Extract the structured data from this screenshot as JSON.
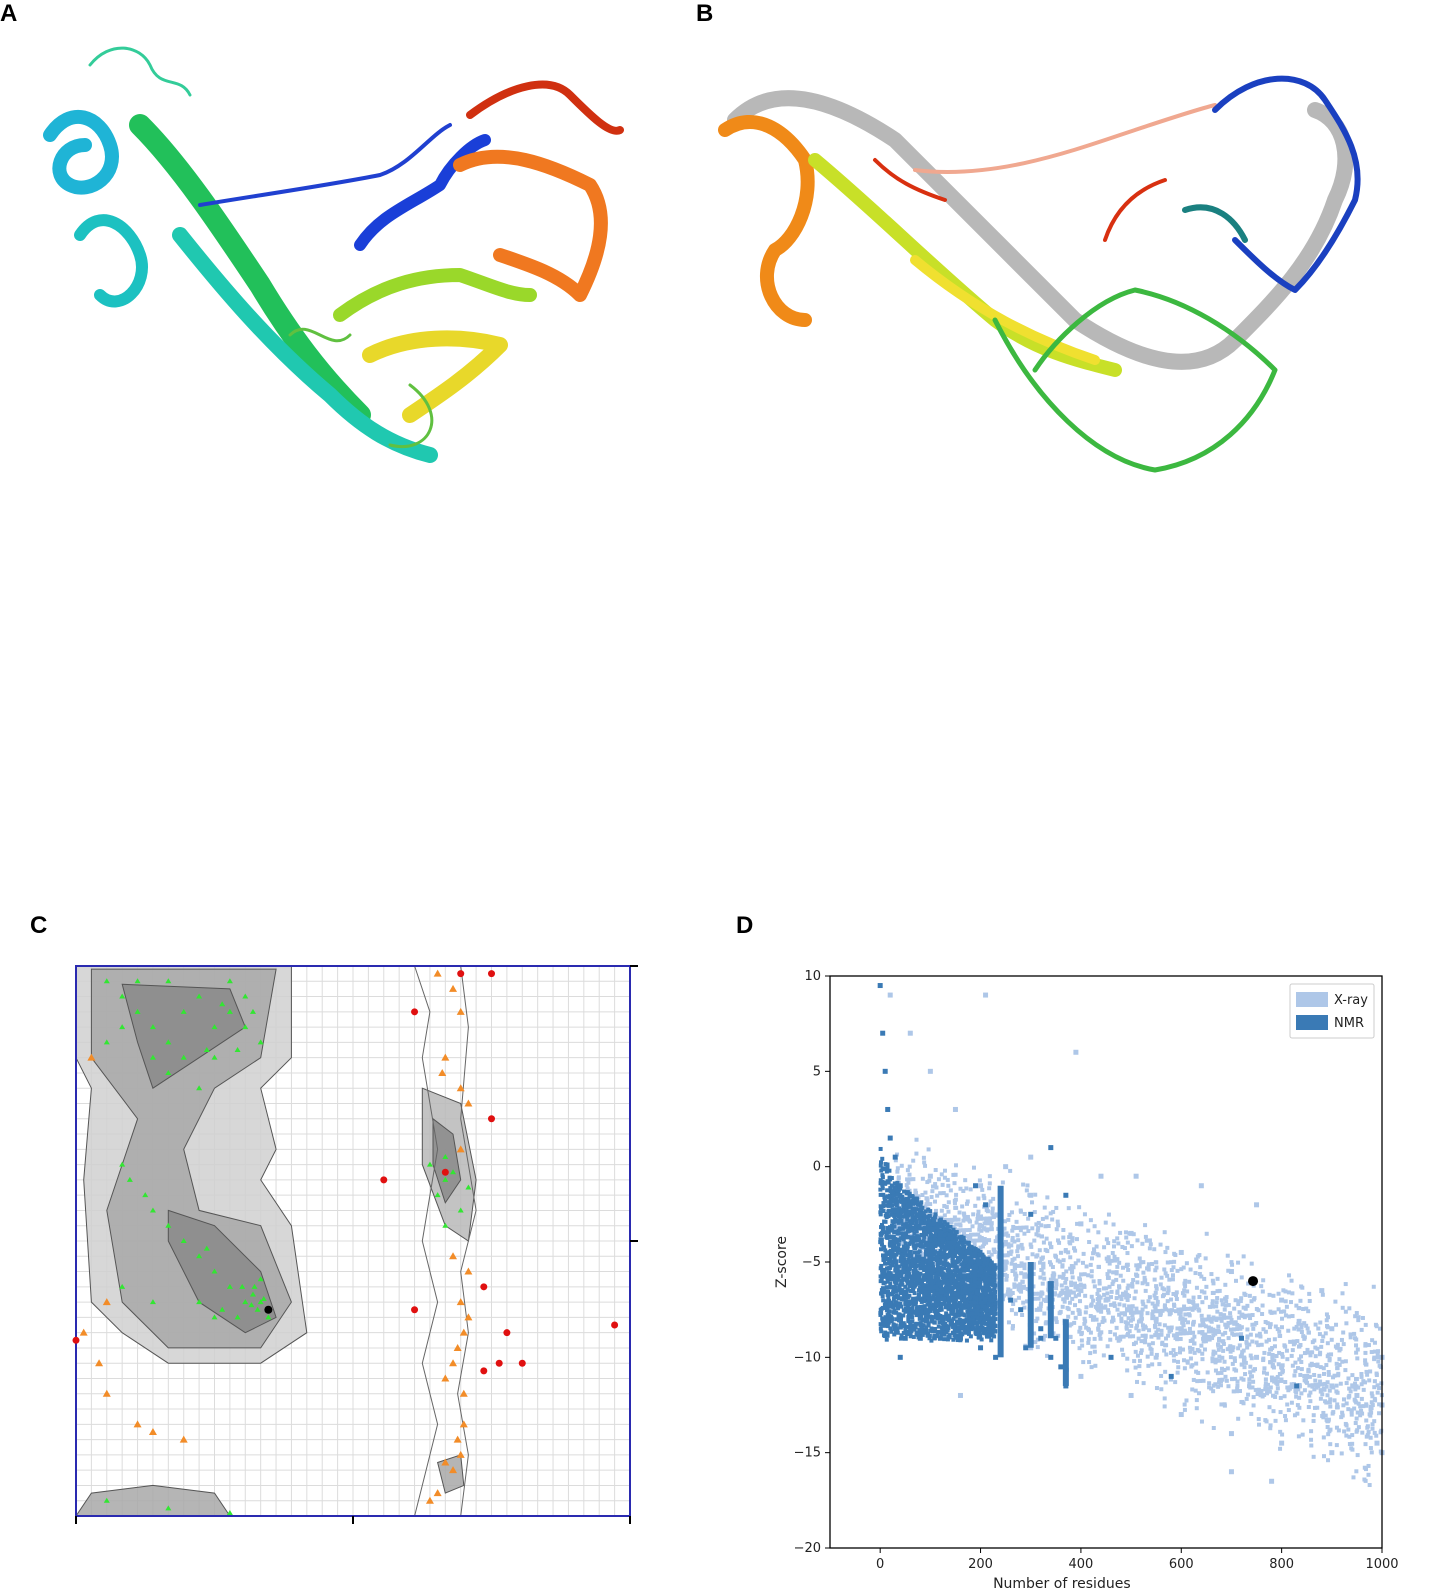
{
  "panels": {
    "a": {
      "label": "A"
    },
    "b": {
      "label": "B"
    },
    "c": {
      "label": "C"
    },
    "d": {
      "label": "D"
    }
  },
  "colors": {
    "xray": "#aec7e8",
    "nmr": "#3a7ab5",
    "model_point": "#000000",
    "rama_favoured": "#32e632",
    "rama_allowed": "#f28c28",
    "rama_outlier": "#e01010",
    "rama_border": "#2a2ab0"
  },
  "chart_data": [
    {
      "type": "scatter",
      "panel": "C",
      "title": "",
      "xlabel": "",
      "ylabel": "",
      "series": [
        {
          "category": "favoured",
          "points": [
            [
              -160,
              170
            ],
            [
              -150,
              160
            ],
            [
              -140,
              150
            ],
            [
              -130,
              140
            ],
            [
              -120,
              130
            ],
            [
              -110,
              150
            ],
            [
              -100,
              160
            ],
            [
              -90,
              140
            ],
            [
              -80,
              150
            ],
            [
              -70,
              140
            ],
            [
              -60,
              130
            ],
            [
              -150,
              140
            ],
            [
              -130,
              120
            ],
            [
              -110,
              120
            ],
            [
              -90,
              120
            ],
            [
              -140,
              170
            ],
            [
              -120,
              170
            ],
            [
              -80,
              170
            ],
            [
              -70,
              160
            ],
            [
              -160,
              130
            ],
            [
              -100,
              100
            ],
            [
              -120,
              110
            ],
            [
              -95,
              125
            ],
            [
              -75,
              125
            ],
            [
              -85,
              155
            ],
            [
              -65,
              150
            ],
            [
              -60,
              -40
            ],
            [
              -65,
              -35
            ],
            [
              -62,
              -45
            ],
            [
              -70,
              -40
            ],
            [
              -58,
              -38
            ],
            [
              -66,
              -42
            ],
            [
              -64,
              -30
            ],
            [
              -72,
              -30
            ],
            [
              -80,
              -30
            ],
            [
              -90,
              -20
            ],
            [
              -100,
              -10
            ],
            [
              -110,
              0
            ],
            [
              -85,
              -45
            ],
            [
              -75,
              -50
            ],
            [
              -55,
              -50
            ],
            [
              -60,
              -25
            ],
            [
              -95,
              -5
            ],
            [
              -120,
              10
            ],
            [
              -130,
              20
            ],
            [
              -135,
              30
            ],
            [
              -145,
              40
            ],
            [
              -150,
              50
            ],
            [
              -150,
              -30
            ],
            [
              -130,
              -40
            ],
            [
              -100,
              -40
            ],
            [
              -90,
              -50
            ],
            [
              60,
              40
            ],
            [
              55,
              30
            ],
            [
              65,
              45
            ],
            [
              70,
              20
            ],
            [
              60,
              10
            ],
            [
              50,
              50
            ],
            [
              75,
              35
            ],
            [
              60,
              55
            ],
            [
              -160,
              -170
            ],
            [
              -120,
              -175
            ],
            [
              -80,
              -178
            ]
          ]
        },
        {
          "category": "allowed",
          "points": [
            [
              -170,
              120
            ],
            [
              -160,
              -40
            ],
            [
              -165,
              -80
            ],
            [
              -175,
              -60
            ],
            [
              -140,
              -120
            ],
            [
              -130,
              -125
            ],
            [
              -110,
              -130
            ],
            [
              -160,
              -100
            ],
            [
              50,
              -170
            ],
            [
              55,
              -165
            ],
            [
              65,
              -150
            ],
            [
              70,
              -140
            ],
            [
              60,
              -145
            ],
            [
              68,
              -130
            ],
            [
              72,
              -120
            ],
            [
              60,
              120
            ],
            [
              58,
              110
            ],
            [
              70,
              100
            ],
            [
              75,
              90
            ],
            [
              70,
              60
            ],
            [
              65,
              -10
            ],
            [
              75,
              -20
            ],
            [
              70,
              -40
            ],
            [
              75,
              -50
            ],
            [
              72,
              -60
            ],
            [
              65,
              -80
            ],
            [
              68,
              -70
            ],
            [
              60,
              -90
            ],
            [
              72,
              -100
            ],
            [
              55,
              175
            ],
            [
              65,
              165
            ],
            [
              70,
              150
            ]
          ]
        },
        {
          "category": "outlier",
          "points": [
            [
              40,
              150
            ],
            [
              70,
              175
            ],
            [
              90,
              175
            ],
            [
              100,
              -60
            ],
            [
              40,
              -45
            ],
            [
              -180,
              -65
            ],
            [
              90,
              80
            ],
            [
              85,
              -30
            ],
            [
              85,
              -85
            ],
            [
              95,
              -80
            ],
            [
              110,
              -80
            ],
            [
              170,
              -55
            ],
            [
              20,
              40
            ],
            [
              60,
              45
            ]
          ]
        },
        {
          "category": "model",
          "points": [
            [
              -55,
              -45
            ]
          ]
        }
      ],
      "xlim": [
        -180,
        180
      ],
      "ylim": [
        -180,
        180
      ]
    },
    {
      "type": "scatter",
      "panel": "D",
      "xlabel": "Number of residues",
      "ylabel": "Z-score",
      "xlim": [
        -100,
        1000
      ],
      "ylim": [
        -20,
        10
      ],
      "xticks": [
        0,
        200,
        400,
        600,
        800,
        1000
      ],
      "yticks": [
        10,
        5,
        0,
        -5,
        -10,
        -15,
        -20
      ],
      "legend": {
        "position": "top-right",
        "entries": [
          "X-ray",
          "NMR"
        ]
      },
      "series": [
        {
          "name": "X-ray",
          "style": "density cloud",
          "points": [
            [
              10,
              -2
            ],
            [
              50,
              -3
            ],
            [
              100,
              -3.5
            ],
            [
              150,
              -4
            ],
            [
              200,
              -4.5
            ],
            [
              250,
              -5
            ],
            [
              300,
              -5.5
            ],
            [
              350,
              -6
            ],
            [
              400,
              -6.5
            ],
            [
              450,
              -7
            ],
            [
              500,
              -7.5
            ],
            [
              550,
              -8
            ],
            [
              600,
              -8.5
            ],
            [
              650,
              -9
            ],
            [
              700,
              -9.5
            ],
            [
              750,
              -10
            ],
            [
              800,
              -10.5
            ],
            [
              850,
              -11
            ],
            [
              900,
              -11.5
            ],
            [
              950,
              -12
            ],
            [
              1000,
              -12.5
            ],
            [
              100,
              -0.5
            ],
            [
              200,
              -1
            ],
            [
              300,
              -1.5
            ],
            [
              400,
              -3
            ],
            [
              500,
              -3.5
            ],
            [
              600,
              -4.5
            ],
            [
              700,
              -5.5
            ],
            [
              800,
              -7
            ],
            [
              900,
              -8.5
            ],
            [
              1000,
              -10
            ],
            [
              100,
              -7
            ],
            [
              200,
              -8.5
            ],
            [
              300,
              -9.5
            ],
            [
              400,
              -11
            ],
            [
              500,
              -12
            ],
            [
              600,
              -13
            ],
            [
              700,
              -14
            ],
            [
              800,
              -14.5
            ],
            [
              900,
              -15
            ],
            [
              1000,
              -15
            ],
            [
              20,
              9
            ],
            [
              60,
              7
            ],
            [
              100,
              5
            ],
            [
              150,
              3
            ],
            [
              210,
              9
            ],
            [
              390,
              6
            ],
            [
              250,
              0
            ],
            [
              300,
              0.5
            ],
            [
              440,
              -0.5
            ],
            [
              510,
              -0.5
            ],
            [
              640,
              -1
            ],
            [
              750,
              -2
            ],
            [
              880,
              -6.5
            ],
            [
              990,
              -14.5
            ],
            [
              700,
              -16
            ],
            [
              780,
              -16.5
            ],
            [
              160,
              -12
            ]
          ]
        },
        {
          "name": "NMR",
          "style": "density cloud",
          "points": [
            [
              0,
              9.5
            ],
            [
              5,
              7
            ],
            [
              10,
              5
            ],
            [
              15,
              3
            ],
            [
              20,
              1.5
            ],
            [
              30,
              0.5
            ],
            [
              40,
              -1
            ],
            [
              60,
              -2
            ],
            [
              80,
              -2.5
            ],
            [
              100,
              -3
            ],
            [
              120,
              -3.5
            ],
            [
              140,
              -4
            ],
            [
              160,
              -4.5
            ],
            [
              180,
              -5
            ],
            [
              200,
              -5.5
            ],
            [
              220,
              -6
            ],
            [
              240,
              -6.5
            ],
            [
              260,
              -7
            ],
            [
              280,
              -7.5
            ],
            [
              300,
              -8
            ],
            [
              320,
              -8.5
            ],
            [
              350,
              -9
            ],
            [
              370,
              -9.5
            ],
            [
              30,
              -8.5
            ],
            [
              50,
              -9
            ],
            [
              80,
              -9
            ],
            [
              120,
              -9
            ],
            [
              160,
              -9
            ],
            [
              200,
              -9.5
            ],
            [
              230,
              -10
            ],
            [
              290,
              -9.5
            ],
            [
              320,
              -9
            ],
            [
              340,
              -10
            ],
            [
              360,
              -10.5
            ],
            [
              370,
              -11.5
            ],
            [
              40,
              -10
            ],
            [
              60,
              -4.5
            ],
            [
              100,
              -6
            ],
            [
              140,
              -7
            ],
            [
              170,
              -7
            ],
            [
              190,
              -1
            ],
            [
              210,
              -2
            ],
            [
              340,
              1
            ],
            [
              300,
              -2.5
            ],
            [
              370,
              -1.5
            ],
            [
              460,
              -10
            ],
            [
              580,
              -11
            ],
            [
              720,
              -9
            ],
            [
              830,
              -11.5
            ]
          ]
        },
        {
          "name": "",
          "style": "model",
          "points": [
            [
              743,
              -6
            ]
          ]
        }
      ]
    }
  ]
}
